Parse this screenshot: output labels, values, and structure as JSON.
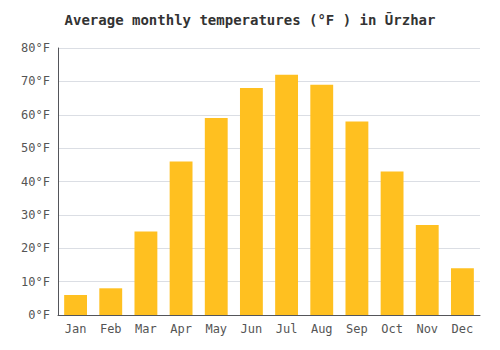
{
  "chart_data": {
    "type": "bar",
    "title": "Average monthly temperatures (°F ) in Ūrzhar",
    "categories": [
      "Jan",
      "Feb",
      "Mar",
      "Apr",
      "May",
      "Jun",
      "Jul",
      "Aug",
      "Sep",
      "Oct",
      "Nov",
      "Dec"
    ],
    "values": [
      6,
      8,
      25,
      46,
      59,
      68,
      72,
      69,
      58,
      43,
      27,
      14
    ],
    "color": "#FFC020",
    "ylim": [
      0,
      80
    ],
    "yticks": [
      {
        "value": 0,
        "label": "0°F"
      },
      {
        "value": 10,
        "label": "10°F"
      },
      {
        "value": 20,
        "label": "20°F"
      },
      {
        "value": 30,
        "label": "30°F"
      },
      {
        "value": 40,
        "label": "40°F"
      },
      {
        "value": 50,
        "label": "50°F"
      },
      {
        "value": 60,
        "label": "60°F"
      },
      {
        "value": 70,
        "label": "70°F"
      },
      {
        "value": 80,
        "label": "80°F"
      }
    ],
    "grid": true
  }
}
